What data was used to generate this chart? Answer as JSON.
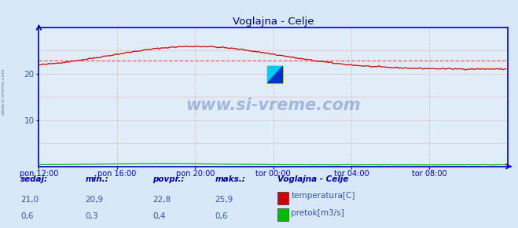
{
  "title": "Voglajna - Celje",
  "bg_color": "#d8e8f8",
  "plot_bg_color": "#e0ecf8",
  "grid_color_h": "#e8c8c8",
  "grid_color_v": "#e0c0c0",
  "x_min": 0,
  "x_max": 288,
  "y_min": 0,
  "y_max": 30,
  "ytick_vals": [
    10,
    20
  ],
  "xtick_labels": [
    "pon 12:00",
    "pon 16:00",
    "pon 20:00",
    "tor 00:00",
    "tor 04:00",
    "tor 08:00"
  ],
  "xtick_positions": [
    0,
    48,
    96,
    144,
    192,
    240
  ],
  "avg_line_value": 22.8,
  "avg_line_color": "#ff5555",
  "temp_color": "#cc0000",
  "flow_color": "#00bb00",
  "axis_color": "#0000cc",
  "spine_color": "#0000cc",
  "watermark_text": "www.si-vreme.com",
  "watermark_color": "#3355aa",
  "side_label_text": "www.si-vreme.com",
  "legend_title": "Voglajna - Celje",
  "legend_items": [
    "temperatura[C]",
    "pretok[m3/s]"
  ],
  "legend_colors": [
    "#cc0000",
    "#00bb00"
  ],
  "stats_labels": [
    "sedaj:",
    "min.:",
    "povpr.:",
    "maks.:"
  ],
  "stats_temp": [
    "21,0",
    "20,9",
    "22,8",
    "25,9"
  ],
  "stats_flow": [
    "0,6",
    "0,3",
    "0,4",
    "0,6"
  ],
  "stats_value_color": "#3355aa",
  "stats_label_color": "#0000aa",
  "tick_label_color": "#3355aa"
}
